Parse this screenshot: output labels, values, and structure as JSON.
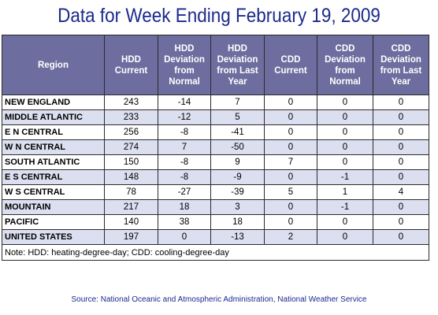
{
  "title": "Data for Week Ending February 19, 2009",
  "columns": [
    "Region",
    "HDD Current",
    "HDD Deviation from Normal",
    "HDD Deviation from Last Year",
    "CDD Current",
    "CDD Deviation from Normal",
    "CDD Deviation from Last Year"
  ],
  "column_lines": [
    [
      "Region"
    ],
    [
      "HDD",
      "Current"
    ],
    [
      "HDD",
      "Deviation",
      "from",
      "Normal"
    ],
    [
      "HDD",
      "Deviation",
      "from Last",
      "Year"
    ],
    [
      "CDD",
      "Current"
    ],
    [
      "CDD",
      "Deviation",
      "from",
      "Normal"
    ],
    [
      "CDD",
      "Deviation",
      "from Last",
      "Year"
    ]
  ],
  "rows": [
    [
      "NEW ENGLAND",
      "243",
      "-14",
      "7",
      "0",
      "0",
      "0"
    ],
    [
      "MIDDLE ATLANTIC",
      "233",
      "-12",
      "5",
      "0",
      "0",
      "0"
    ],
    [
      "E N CENTRAL",
      "256",
      "-8",
      "-41",
      "0",
      "0",
      "0"
    ],
    [
      "W N CENTRAL",
      "274",
      "7",
      "-50",
      "0",
      "0",
      "0"
    ],
    [
      "SOUTH ATLANTIC",
      "150",
      "-8",
      "9",
      "7",
      "0",
      "0"
    ],
    [
      "E S CENTRAL",
      "148",
      "-8",
      "-9",
      "0",
      "-1",
      "0"
    ],
    [
      "W S CENTRAL",
      "78",
      "-27",
      "-39",
      "5",
      "1",
      "4"
    ],
    [
      "MOUNTAIN",
      "217",
      "18",
      "3",
      "0",
      "-1",
      "0"
    ],
    [
      "PACIFIC",
      "140",
      "38",
      "18",
      "0",
      "0",
      "0"
    ],
    [
      "UNITED STATES",
      "197",
      "0",
      "-13",
      "2",
      "0",
      "0"
    ]
  ],
  "note": "Note: HDD: heating-degree-day; CDD: cooling-degree-day",
  "source": "Source:  National Oceanic and Atmospheric Administration, National Weather Service",
  "colors": {
    "title": "#1c2a8c",
    "header_bg": "#6d6d9f",
    "row_alt_bg": "#dcdff0"
  }
}
